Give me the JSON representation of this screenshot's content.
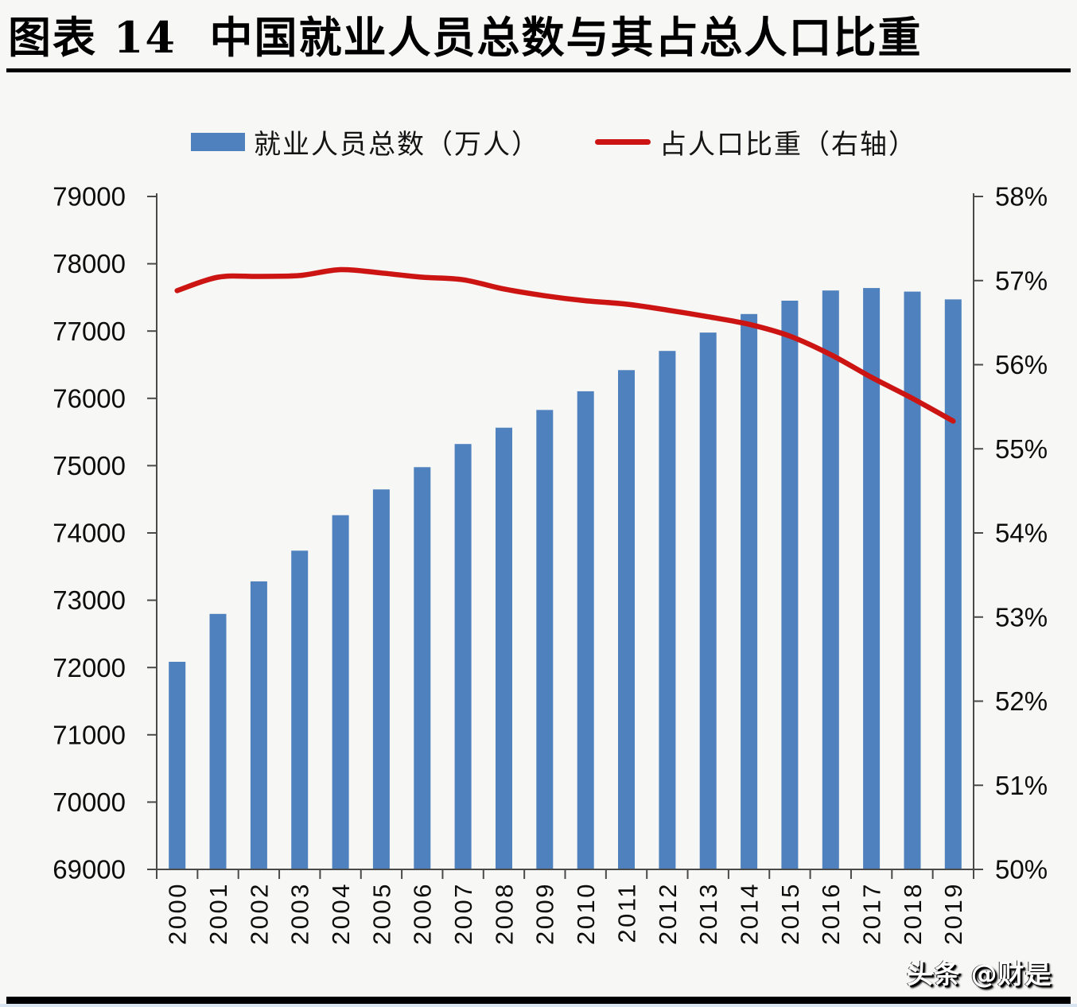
{
  "title": "图表 14  中国就业人员总数与其占总人口比重",
  "watermark": "头条 @财是",
  "colors": {
    "bar": "#4e81bd",
    "line": "#cc1512",
    "axis": "#4a4a4a",
    "text": "#0d0d0d",
    "background": "#f7f7f6"
  },
  "legend": [
    {
      "label": "就业人员总数（万人）",
      "type": "bar",
      "color": "#4e81bd"
    },
    {
      "label": "占人口比重（右轴）",
      "type": "line",
      "color": "#cc1512"
    }
  ],
  "chart_data": {
    "type": "bar+line",
    "title": "图表 14  中国就业人员总数与其占总人口比重",
    "categories": [
      "2000",
      "2001",
      "2002",
      "2003",
      "2004",
      "2005",
      "2006",
      "2007",
      "2008",
      "2009",
      "2010",
      "2011",
      "2012",
      "2013",
      "2014",
      "2015",
      "2016",
      "2017",
      "2018",
      "2019"
    ],
    "series": [
      {
        "name": "就业人员总数（万人）",
        "type": "bar",
        "axis": "left",
        "color": "#4e81bd",
        "values": [
          72085,
          72797,
          73280,
          73736,
          74264,
          74647,
          74978,
          75321,
          75564,
          75828,
          76105,
          76420,
          76704,
          76977,
          77253,
          77451,
          77603,
          77640,
          77586,
          77471
        ]
      },
      {
        "name": "占人口比重（右轴）",
        "type": "line",
        "axis": "right",
        "color": "#cc1512",
        "values": [
          56.88,
          57.04,
          57.05,
          57.06,
          57.13,
          57.09,
          57.04,
          57.01,
          56.9,
          56.82,
          56.76,
          56.72,
          56.65,
          56.57,
          56.48,
          56.34,
          56.12,
          55.85,
          55.6,
          55.33
        ]
      }
    ],
    "left_axis": {
      "min": 69000,
      "max": 79000,
      "step": 1000,
      "tick_labels": [
        "69000",
        "70000",
        "71000",
        "72000",
        "73000",
        "74000",
        "75000",
        "76000",
        "77000",
        "78000",
        "79000"
      ]
    },
    "right_axis": {
      "min": 50,
      "max": 58,
      "step": 1,
      "tick_labels": [
        "50%",
        "51%",
        "52%",
        "53%",
        "54%",
        "55%",
        "56%",
        "57%",
        "58%"
      ]
    },
    "grid": false,
    "legend_position": "top"
  }
}
